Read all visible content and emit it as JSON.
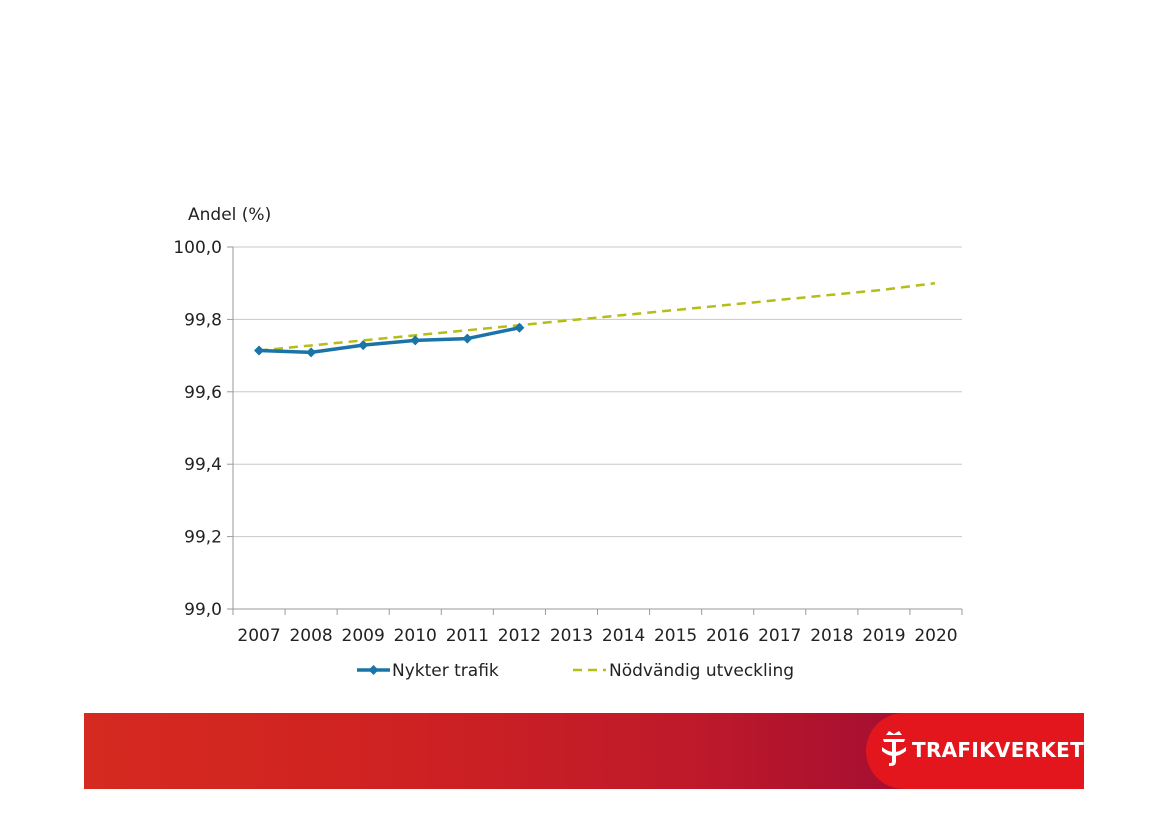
{
  "chart_data": {
    "type": "line",
    "title": "",
    "ylabel": "Andel (%)",
    "xlabel": "",
    "ylim": [
      99.0,
      100.0
    ],
    "yticks": [
      "99,0",
      "99,2",
      "99,4",
      "99,6",
      "99,8",
      "100,0"
    ],
    "ytick_values": [
      99.0,
      99.2,
      99.4,
      99.6,
      99.8,
      100.0
    ],
    "categories": [
      "2007",
      "2008",
      "2009",
      "2010",
      "2011",
      "2012",
      "2013",
      "2014",
      "2015",
      "2016",
      "2017",
      "2018",
      "2019",
      "2020"
    ],
    "series": [
      {
        "name": "Nykter trafik",
        "style": "solid-marker",
        "color": "#1a74a8",
        "values": [
          99.714,
          99.709,
          99.729,
          99.742,
          99.747,
          99.777,
          null,
          null,
          null,
          null,
          null,
          null,
          null,
          null
        ]
      },
      {
        "name": "Nödvändig utveckling",
        "style": "dashed",
        "color": "#b5bd16",
        "values": [
          99.714,
          99.728,
          99.742,
          99.756,
          99.77,
          99.784,
          99.798,
          99.812,
          99.826,
          99.84,
          99.854,
          99.868,
          99.882,
          99.9
        ]
      }
    ],
    "grid": true,
    "legend": "bottom"
  },
  "brand": {
    "name": "TRAFIKVERKET",
    "color": "#e3161d"
  }
}
